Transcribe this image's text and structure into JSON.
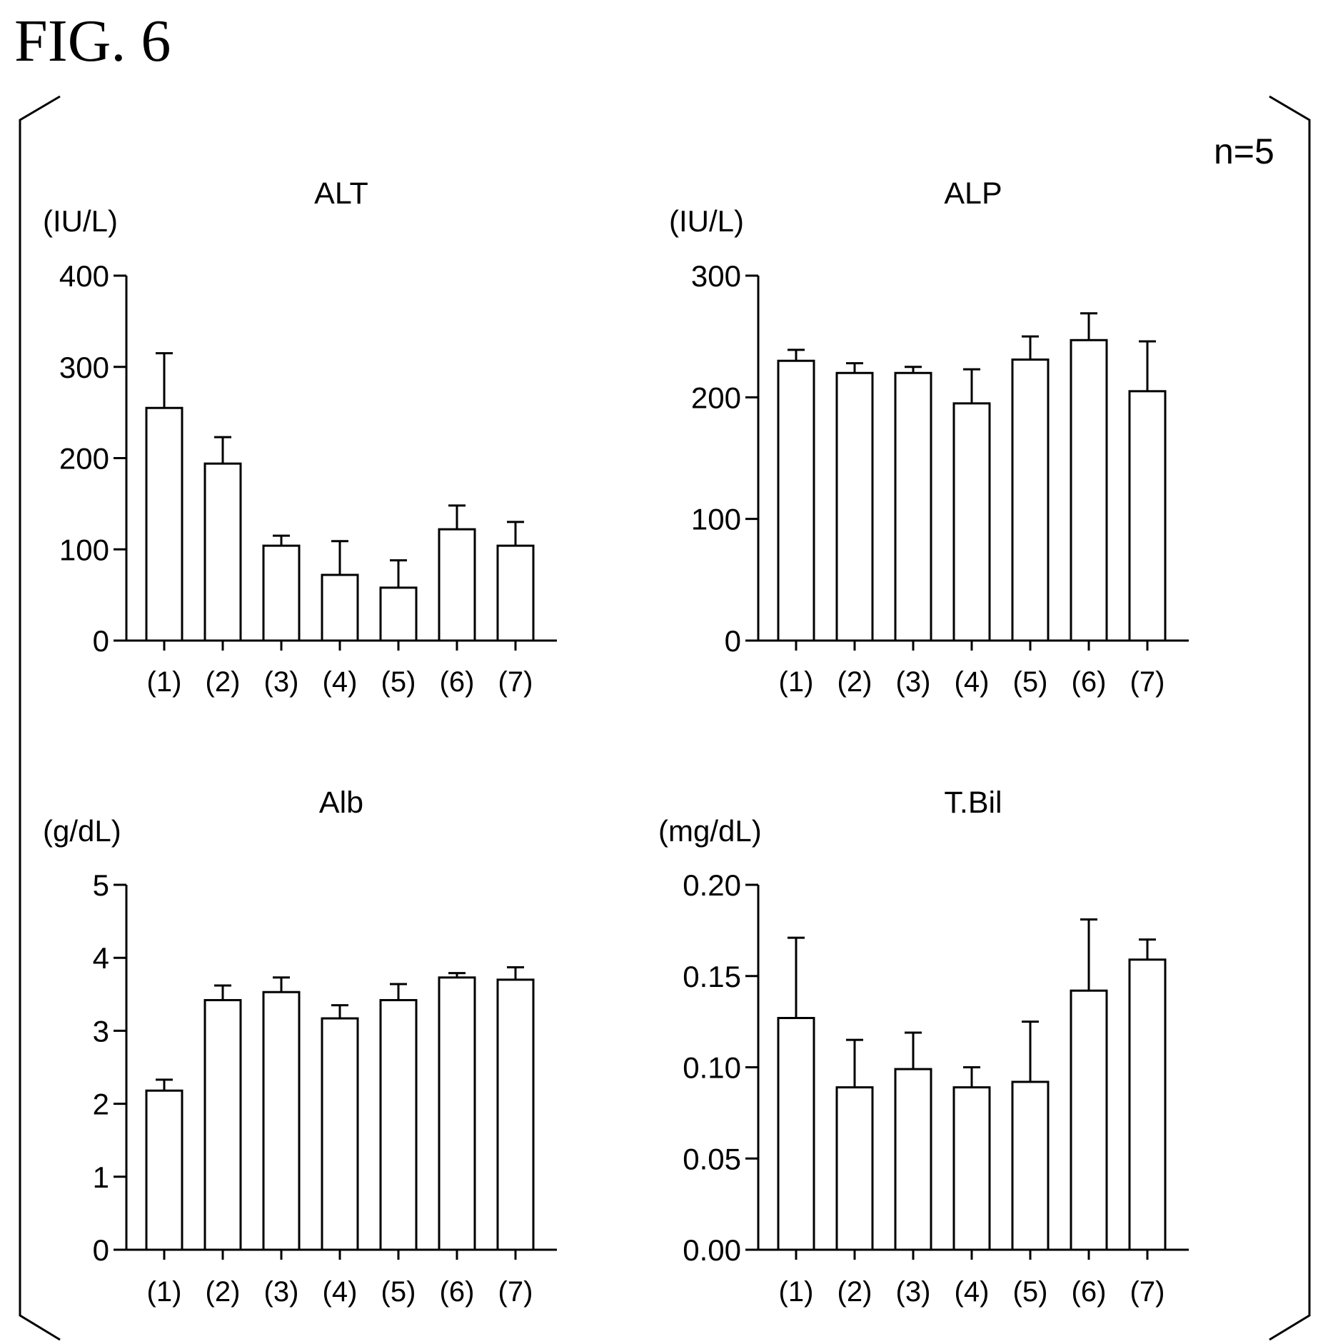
{
  "figure": {
    "title": "FIG. 6",
    "note": "n=5"
  },
  "chart_data": [
    {
      "type": "bar",
      "title": "ALT",
      "ylabel": "(IU/L)",
      "categories": [
        "(1)",
        "(2)",
        "(3)",
        "(4)",
        "(5)",
        "(6)",
        "(7)"
      ],
      "values": [
        255,
        194,
        104,
        72,
        58,
        122,
        104
      ],
      "errors": [
        60,
        29,
        11,
        37,
        30,
        26,
        26
      ],
      "ylim": [
        0,
        400
      ],
      "yticks": [
        "0",
        "100",
        "200",
        "300",
        "400"
      ],
      "ytick_values": [
        0,
        100,
        200,
        300,
        400
      ],
      "grid": false,
      "legend": "none"
    },
    {
      "type": "bar",
      "title": "ALP",
      "ylabel": "(IU/L)",
      "categories": [
        "(1)",
        "(2)",
        "(3)",
        "(4)",
        "(5)",
        "(6)",
        "(7)"
      ],
      "values": [
        230,
        220,
        220,
        195,
        231,
        247,
        205
      ],
      "errors": [
        9,
        8,
        5,
        28,
        19,
        22,
        41
      ],
      "ylim": [
        0,
        300
      ],
      "yticks": [
        "0",
        "100",
        "200",
        "300"
      ],
      "ytick_values": [
        0,
        100,
        200,
        300
      ],
      "grid": false,
      "legend": "none"
    },
    {
      "type": "bar",
      "title": "Alb",
      "ylabel": "(g/dL)",
      "categories": [
        "(1)",
        "(2)",
        "(3)",
        "(4)",
        "(5)",
        "(6)",
        "(7)"
      ],
      "values": [
        2.18,
        3.42,
        3.53,
        3.17,
        3.42,
        3.73,
        3.7
      ],
      "errors": [
        0.15,
        0.2,
        0.2,
        0.18,
        0.22,
        0.06,
        0.17
      ],
      "ylim": [
        0,
        5
      ],
      "yticks": [
        "0",
        "1",
        "2",
        "3",
        "4",
        "5"
      ],
      "ytick_values": [
        0,
        1,
        2,
        3,
        4,
        5
      ],
      "grid": false,
      "legend": "none"
    },
    {
      "type": "bar",
      "title": "T.Bil",
      "ylabel": "(mg/dL)",
      "categories": [
        "(1)",
        "(2)",
        "(3)",
        "(4)",
        "(5)",
        "(6)",
        "(7)"
      ],
      "values": [
        0.127,
        0.089,
        0.099,
        0.089,
        0.092,
        0.142,
        0.159
      ],
      "errors": [
        0.044,
        0.026,
        0.02,
        0.011,
        0.033,
        0.039,
        0.011
      ],
      "ylim": [
        0,
        0.2
      ],
      "yticks": [
        "0.00",
        "0.05",
        "0.10",
        "0.15",
        "0.20"
      ],
      "ytick_values": [
        0,
        0.05,
        0.1,
        0.15,
        0.2
      ],
      "grid": false,
      "legend": "none"
    }
  ]
}
